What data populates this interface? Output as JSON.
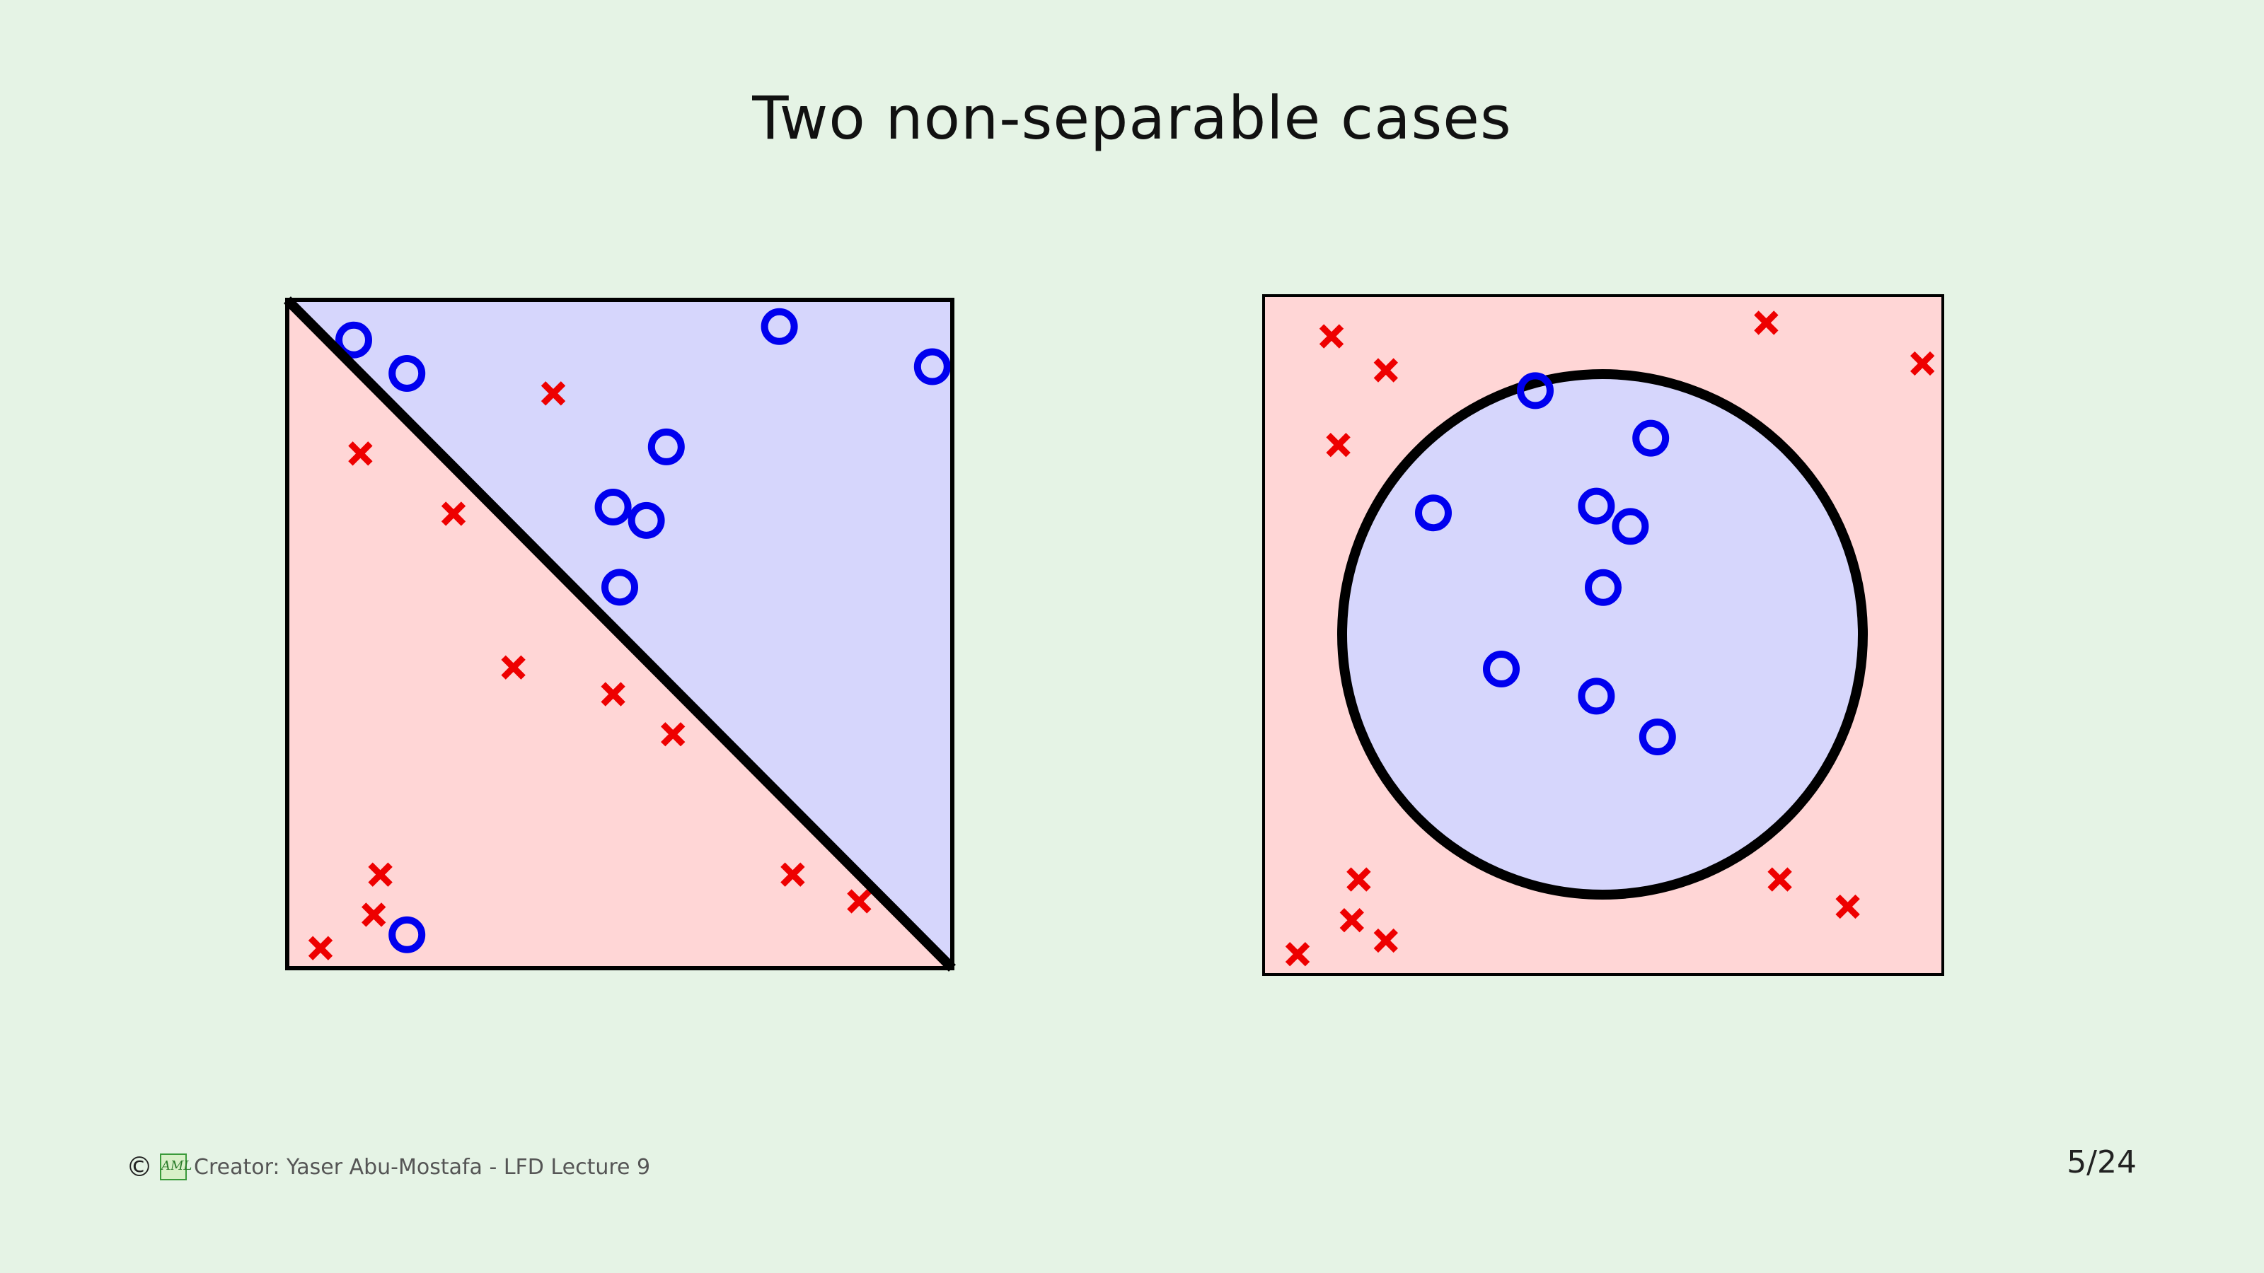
{
  "slide": {
    "title": "Two non-separable cases",
    "footer": {
      "copyright_symbol": "©",
      "logo_text": "AML",
      "credit": "Creator: Yaser Abu-Mostafa - LFD Lecture 9"
    },
    "page_number": "5/24"
  },
  "colors": {
    "background": "#e5f3e5",
    "region_positive": "#d6d6fc",
    "region_negative": "#ffd6d6",
    "circle_marker": "#0000ee",
    "cross_marker": "#ee0000",
    "boundary": "#000000"
  },
  "chart_data": [
    {
      "type": "scatter",
      "boundary": "linear diagonal from top-left to bottom-right",
      "xlim": [
        0,
        1
      ],
      "ylim": [
        0,
        1
      ],
      "series": [
        {
          "marker": "circle",
          "points": [
            [
              0.1,
              0.94
            ],
            [
              0.18,
              0.89
            ],
            [
              0.74,
              0.96
            ],
            [
              0.97,
              0.9
            ],
            [
              0.57,
              0.78
            ],
            [
              0.49,
              0.69
            ],
            [
              0.54,
              0.67
            ],
            [
              0.5,
              0.57
            ],
            [
              0.18,
              0.05
            ]
          ]
        },
        {
          "marker": "cross",
          "points": [
            [
              0.4,
              0.86
            ],
            [
              0.11,
              0.77
            ],
            [
              0.25,
              0.68
            ],
            [
              0.34,
              0.45
            ],
            [
              0.49,
              0.41
            ],
            [
              0.58,
              0.35
            ],
            [
              0.14,
              0.14
            ],
            [
              0.13,
              0.08
            ],
            [
              0.05,
              0.03
            ],
            [
              0.76,
              0.14
            ],
            [
              0.86,
              0.1
            ]
          ]
        }
      ]
    },
    {
      "type": "scatter",
      "boundary": "circle centred in the square",
      "xlim": [
        0,
        1
      ],
      "ylim": [
        0,
        1
      ],
      "series": [
        {
          "marker": "circle",
          "points": [
            [
              0.4,
              0.86
            ],
            [
              0.57,
              0.79
            ],
            [
              0.25,
              0.68
            ],
            [
              0.49,
              0.69
            ],
            [
              0.54,
              0.66
            ],
            [
              0.5,
              0.57
            ],
            [
              0.35,
              0.45
            ],
            [
              0.49,
              0.41
            ],
            [
              0.58,
              0.35
            ]
          ]
        },
        {
          "marker": "cross",
          "points": [
            [
              0.1,
              0.94
            ],
            [
              0.18,
              0.89
            ],
            [
              0.74,
              0.96
            ],
            [
              0.97,
              0.9
            ],
            [
              0.11,
              0.78
            ],
            [
              0.14,
              0.14
            ],
            [
              0.13,
              0.08
            ],
            [
              0.18,
              0.05
            ],
            [
              0.05,
              0.03
            ],
            [
              0.76,
              0.14
            ],
            [
              0.86,
              0.1
            ]
          ]
        }
      ]
    }
  ]
}
